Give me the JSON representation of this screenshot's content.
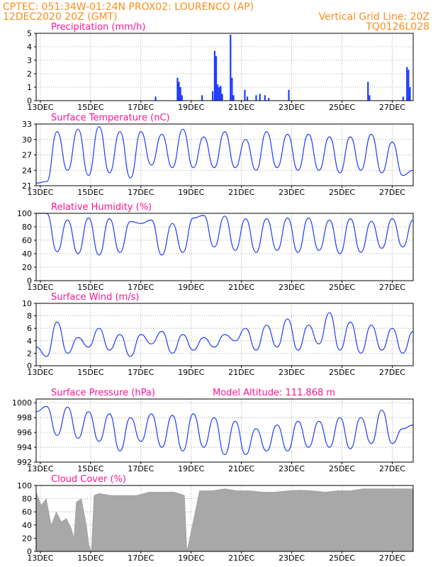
{
  "header": {
    "station": "CPTEC:    051:34W-01:24N    PROX02: LOURENCO (AP)",
    "run": "12DEC2020 20Z (GMT)",
    "grid_note": "Vertical Grid Line: 20Z",
    "code": "TQ0126L028"
  },
  "colors": {
    "header": "#ff8c1a",
    "title": "#ff1493",
    "series": "#1e3cff",
    "cloud": "#a8a8a8"
  },
  "x_ticks": [
    "13DEC",
    "15DEC",
    "17DEC",
    "19DEC",
    "21DEC",
    "23DEC",
    "25DEC",
    "27DEC"
  ],
  "chart_data": [
    {
      "type": "bar",
      "title": "Precipitation (mm/h)",
      "ylim": [
        0,
        5
      ],
      "y_ticks": [
        "0",
        "1",
        "2",
        "3",
        "4",
        "5"
      ],
      "events": [
        {
          "x": 4.75,
          "v": 0.3
        },
        {
          "x": 5.62,
          "v": 1.7
        },
        {
          "x": 5.68,
          "v": 1.4
        },
        {
          "x": 5.74,
          "v": 1.0
        },
        {
          "x": 5.8,
          "v": 0.4
        },
        {
          "x": 6.6,
          "v": 0.4
        },
        {
          "x": 7.02,
          "v": 0.7
        },
        {
          "x": 7.1,
          "v": 3.7
        },
        {
          "x": 7.16,
          "v": 3.3
        },
        {
          "x": 7.22,
          "v": 1.2
        },
        {
          "x": 7.28,
          "v": 1.0
        },
        {
          "x": 7.34,
          "v": 1.1
        },
        {
          "x": 7.4,
          "v": 0.5
        },
        {
          "x": 7.73,
          "v": 4.9
        },
        {
          "x": 7.79,
          "v": 1.7
        },
        {
          "x": 7.85,
          "v": 0.4
        },
        {
          "x": 8.3,
          "v": 0.8
        },
        {
          "x": 8.4,
          "v": 0.3
        },
        {
          "x": 8.75,
          "v": 0.4
        },
        {
          "x": 8.9,
          "v": 0.5
        },
        {
          "x": 9.1,
          "v": 0.4
        },
        {
          "x": 9.25,
          "v": 0.2
        },
        {
          "x": 10.05,
          "v": 0.8
        },
        {
          "x": 13.2,
          "v": 1.4
        },
        {
          "x": 13.26,
          "v": 0.4
        },
        {
          "x": 14.6,
          "v": 0.3
        },
        {
          "x": 14.75,
          "v": 2.5
        },
        {
          "x": 14.81,
          "v": 2.3
        },
        {
          "x": 14.87,
          "v": 1.0
        }
      ]
    },
    {
      "type": "line",
      "title": "Surface Temperature (nC)",
      "ylim": [
        21,
        33
      ],
      "y_ticks": [
        "21",
        "24",
        "27",
        "30",
        "33"
      ],
      "y": [
        21.5,
        21.8,
        31.5,
        24.0,
        32.0,
        23.0,
        32.5,
        23.5,
        31.5,
        22.5,
        31.5,
        25.0,
        31.0,
        24.5,
        32.0,
        24.5,
        30.5,
        24.5,
        31.5,
        24.5,
        30.0,
        24.0,
        31.5,
        24.5,
        31.0,
        24.0,
        31.0,
        24.0,
        30.5,
        23.5,
        30.5,
        24.0,
        31.0,
        23.5,
        29.5,
        23.0,
        24.0
      ]
    },
    {
      "type": "line",
      "title": "Relative Humidity (%)",
      "ylim": [
        0,
        100
      ],
      "y_ticks": [
        "0",
        "20",
        "40",
        "60",
        "80",
        "100"
      ],
      "y": [
        100,
        100,
        43,
        90,
        40,
        93,
        38,
        92,
        42,
        88,
        85,
        90,
        38,
        85,
        42,
        93,
        97,
        50,
        96,
        45,
        92,
        42,
        92,
        45,
        93,
        42,
        93,
        45,
        90,
        40,
        92,
        42,
        88,
        48,
        92,
        50,
        90
      ]
    },
    {
      "type": "line",
      "title": "Surface Wind (m/s)",
      "ylim": [
        0,
        10
      ],
      "y_ticks": [
        "0",
        "2",
        "4",
        "6",
        "8",
        "10"
      ],
      "y": [
        3.0,
        1.5,
        7.0,
        2.0,
        4.5,
        3.0,
        6.0,
        2.5,
        5.0,
        1.5,
        5.0,
        3.5,
        5.5,
        2.0,
        5.0,
        2.5,
        4.5,
        3.0,
        5.0,
        4.0,
        6.0,
        2.5,
        6.5,
        3.0,
        7.5,
        2.5,
        6.5,
        3.5,
        8.5,
        2.5,
        7.0,
        2.0,
        6.5,
        2.5,
        6.0,
        2.0,
        5.5
      ]
    },
    {
      "type": "line",
      "title": "Surface Pressure (hPa)",
      "annotation": "Model Altitude: 111.868 m",
      "ylim": [
        992,
        1000.5
      ],
      "y_ticks": [
        "992",
        "994",
        "996",
        "998",
        "1000"
      ],
      "y": [
        998.8,
        999.5,
        995.6,
        999.4,
        995.2,
        998.8,
        994.8,
        998.5,
        993.5,
        998.0,
        994.8,
        998.5,
        994.0,
        998.3,
        993.5,
        998.5,
        994.0,
        998.0,
        993.0,
        997.5,
        993.0,
        996.5,
        993.5,
        997.0,
        993.5,
        997.5,
        994.0,
        997.5,
        994.0,
        998.0,
        993.8,
        998.0,
        994.5,
        999.0,
        994.5,
        996.5,
        997.0
      ]
    },
    {
      "type": "area",
      "title": "Cloud Cover (%)",
      "ylim": [
        0,
        100
      ],
      "y_ticks": [
        "0",
        "20",
        "40",
        "60",
        "80",
        "100"
      ],
      "x": [
        0.0,
        0.2,
        0.4,
        0.6,
        0.8,
        1.0,
        1.2,
        1.4,
        1.5,
        1.6,
        1.8,
        2.0,
        2.1,
        2.2,
        2.3,
        2.5,
        3.0,
        3.5,
        4.0,
        4.5,
        5.0,
        5.5,
        5.9,
        6.0,
        6.5,
        7.0,
        7.5,
        8.0,
        8.5,
        9.0,
        9.5,
        10.0,
        10.5,
        11.0,
        11.5,
        12.0,
        12.5,
        13.0,
        13.5,
        14.0,
        14.5,
        15.0
      ],
      "y": [
        90,
        70,
        80,
        40,
        60,
        45,
        50,
        35,
        20,
        75,
        80,
        40,
        10,
        0,
        85,
        88,
        85,
        85,
        85,
        90,
        90,
        90,
        85,
        0,
        92,
        92,
        95,
        92,
        92,
        90,
        90,
        92,
        93,
        92,
        90,
        92,
        92,
        95,
        95,
        95,
        95,
        95
      ]
    }
  ]
}
